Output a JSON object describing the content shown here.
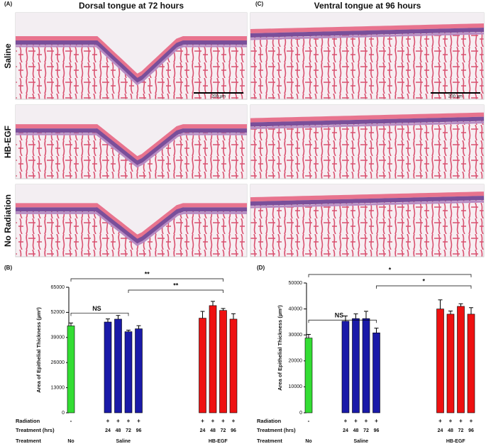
{
  "panels": [
    {
      "label": "(A)",
      "title": "Dorsal tongue at 72 hours"
    },
    {
      "label": "(C)",
      "title": "Ventral tongue at 96 hours"
    }
  ],
  "rows": [
    "Saline",
    "HB-EGF",
    "No Radiation"
  ],
  "scale_bar": "200 µm",
  "row_labels": [
    "Radiation",
    "Treatment (hrs)",
    "Treatment"
  ],
  "chart_data": [
    {
      "type": "bar",
      "label": "(B)",
      "y_label": "Area of Epithelial Thickness (µm²)",
      "values": [
        45000,
        47000,
        48500,
        42000,
        43500,
        49000,
        55500,
        53000,
        48500
      ],
      "errors": [
        1500,
        1600,
        1900,
        800,
        1600,
        3500,
        2200,
        1000,
        2800
      ],
      "colors": [
        "#33dd33",
        "#1a1aa8",
        "#1a1aa8",
        "#1a1aa8",
        "#1a1aa8",
        "#ee1111",
        "#ee1111",
        "#ee1111",
        "#ee1111"
      ],
      "radiation": [
        "-",
        "+",
        "+",
        "+",
        "+",
        "+",
        "+",
        "+",
        "+"
      ],
      "hours": [
        null,
        "24",
        "48",
        "72",
        "96",
        "24",
        "48",
        "72",
        "96"
      ],
      "treatment": [
        "No",
        "Saline",
        "Saline",
        "Saline",
        "Saline",
        "HB-EGF",
        "HB-EGF",
        "HB-EGF",
        "HB-EGF"
      ],
      "ylim": [
        0,
        65000
      ],
      "yticks": [
        0,
        13000,
        26000,
        39000,
        52000,
        65000
      ],
      "brackets": [
        {
          "label": "NS",
          "from": 0,
          "to": 3
        },
        {
          "label": "**",
          "from": 3,
          "to": 7
        },
        {
          "label": "**",
          "from": 0,
          "to": 7
        }
      ]
    },
    {
      "type": "bar",
      "label": "(D)",
      "y_label": "Area of Epithelial Thickness (µm²)",
      "values": [
        28800,
        35300,
        36300,
        36300,
        30800,
        40000,
        38000,
        41000,
        38000
      ],
      "errors": [
        1400,
        2000,
        1800,
        2800,
        1800,
        3500,
        1200,
        1000,
        2500
      ],
      "colors": [
        "#33dd33",
        "#1a1aa8",
        "#1a1aa8",
        "#1a1aa8",
        "#1a1aa8",
        "#ee1111",
        "#ee1111",
        "#ee1111",
        "#ee1111"
      ],
      "radiation": [
        "-",
        "+",
        "+",
        "+",
        "+",
        "+",
        "+",
        "+",
        "+"
      ],
      "hours": [
        null,
        "24",
        "48",
        "72",
        "96",
        "24",
        "48",
        "72",
        "96"
      ],
      "treatment": [
        "No",
        "Saline",
        "Saline",
        "Saline",
        "Saline",
        "HB-EGF",
        "HB-EGF",
        "HB-EGF",
        "HB-EGF"
      ],
      "ylim": [
        0,
        50000
      ],
      "yticks": [
        0,
        10000,
        20000,
        30000,
        40000,
        50000
      ],
      "brackets": [
        {
          "label": "NS",
          "from": 0,
          "to": 4
        },
        {
          "label": "*",
          "from": 4,
          "to": 8
        },
        {
          "label": "*",
          "from": 0,
          "to": 8
        }
      ]
    }
  ]
}
